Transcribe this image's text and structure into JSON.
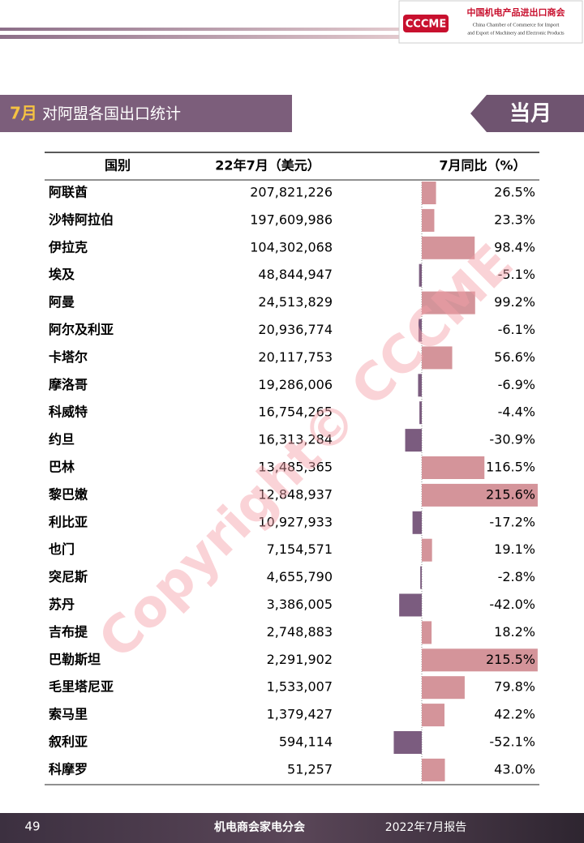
{
  "header": {
    "logo": "CCCME",
    "org_cn": "中国机电产品进出口商会",
    "org_en_1": "China Chamber of Commerce for Import",
    "org_en_2": "and Export of Machinery and Electronic Products"
  },
  "section": {
    "month": "7月",
    "title": "对阿盟各国出口统计",
    "tag": "当月"
  },
  "table": {
    "columns": [
      "国别",
      "22年7月（美元）",
      "7月同比（%）"
    ],
    "countries": [
      "阿联酋",
      "沙特阿拉伯",
      "伊拉克",
      "埃及",
      "阿曼",
      "阿尔及利亚",
      "卡塔尔",
      "摩洛哥",
      "科威特",
      "约旦",
      "巴林",
      "黎巴嫩",
      "利比亚",
      "也门",
      "突尼斯",
      "苏丹",
      "吉布提",
      "巴勒斯坦",
      "毛里塔尼亚",
      "索马里",
      "叙利亚",
      "科摩罗"
    ],
    "amounts": [
      "207,821,226",
      "197,609,986",
      "104,302,068",
      "48,844,947",
      "24,513,829",
      "20,936,774",
      "20,117,753",
      "19,286,006",
      "16,754,265",
      "16,313,284",
      "13,485,365",
      "12,848,937",
      "10,927,933",
      "7,154,571",
      "4,655,790",
      "3,386,005",
      "2,748,883",
      "2,291,902",
      "1,533,007",
      "1,379,427",
      "594,114",
      "51,257"
    ],
    "yoy": [
      26.5,
      23.3,
      98.4,
      -5.1,
      99.2,
      -6.1,
      56.6,
      -6.9,
      -4.4,
      -30.9,
      116.5,
      215.6,
      -17.2,
      19.1,
      -2.8,
      -42.0,
      18.2,
      215.5,
      79.8,
      42.2,
      -52.1,
      43.0
    ],
    "yoy_labels": [
      "26.5%",
      "23.3%",
      "98.4%",
      "-5.1%",
      "99.2%",
      "-6.1%",
      "56.6%",
      "-6.9%",
      "-4.4%",
      "-30.9%",
      "116.5%",
      "215.6%",
      "-17.2%",
      "19.1%",
      "-2.8%",
      "-42.0%",
      "18.2%",
      "215.5%",
      "79.8%",
      "42.2%",
      "-52.1%",
      "43.0%"
    ],
    "positive_color": "#d4949a",
    "negative_color": "#7b5c7f"
  },
  "watermark": "Copyright© CCCME",
  "footer": {
    "page": "49",
    "org": "机电商会家电分会",
    "report": "2022年7月报告"
  }
}
